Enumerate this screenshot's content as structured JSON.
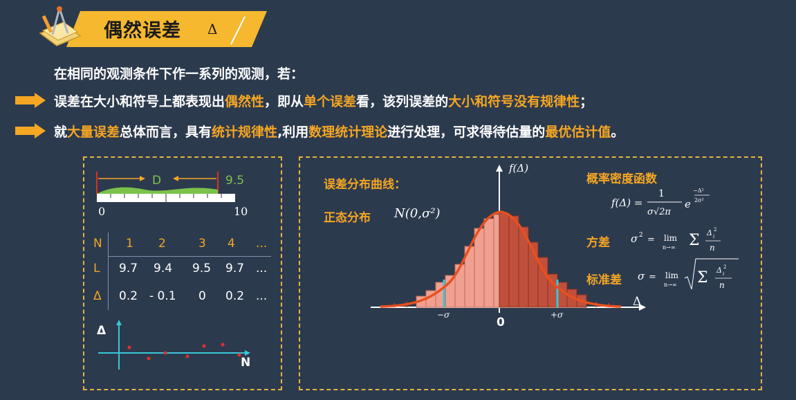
{
  "header": {
    "title": "偶然误差",
    "delta_symbol": "Δ"
  },
  "intro": "在相同的观测条件下作一系列的观测，若：",
  "bullet1": {
    "p1": "误差在大小和符号上都表现出",
    "h1": "偶然性",
    "p2": "，即从",
    "h2": "单个误差",
    "p3": "看，该列误差的",
    "h3": "大小和符号没有规律性",
    "p4": "；"
  },
  "bullet2": {
    "p1": "就",
    "h1": "大量误差",
    "p2": "总体而言，具有",
    "h2": "统计规律性",
    "p3": ",利用",
    "h3": "数理统计理论",
    "p4": "进行处理，可求得待估量的",
    "h4": "最优估计值",
    "p5": "。"
  },
  "left_panel": {
    "ruler": {
      "d_label": "D",
      "value_label": "9.5",
      "start": "0",
      "end": "10"
    },
    "table": {
      "row_labels": [
        "N",
        "L",
        "Δ"
      ],
      "n_values": [
        "1",
        "2",
        "3",
        "4",
        "..."
      ],
      "l_values": [
        "9.7",
        "9.4",
        "9.5",
        "9.7",
        "..."
      ],
      "delta_values": [
        "0.2",
        "- 0.1",
        "0",
        "0.2",
        "..."
      ]
    },
    "scatter": {
      "y_axis": "Δ",
      "x_axis": "N"
    }
  },
  "right_panel": {
    "curve_title": "误差分布曲线：",
    "normal_label": "正态分布",
    "normal_formula": "N(0,σ²)",
    "y_axis_label": "f(Δ)",
    "x_axis_label": "Δ",
    "tick_minus": "−σ",
    "tick_zero": "0",
    "tick_plus": "+σ",
    "pdf_title": "概率密度函数",
    "variance_label": "方差",
    "std_label": "标准差"
  },
  "colors": {
    "accent": "#f5a623",
    "background": "#2c3a4e",
    "curve": "#e8501e",
    "bars_left": "#f0a090",
    "bars_right": "#c0503c",
    "sigma_line": "#38c8d8"
  }
}
